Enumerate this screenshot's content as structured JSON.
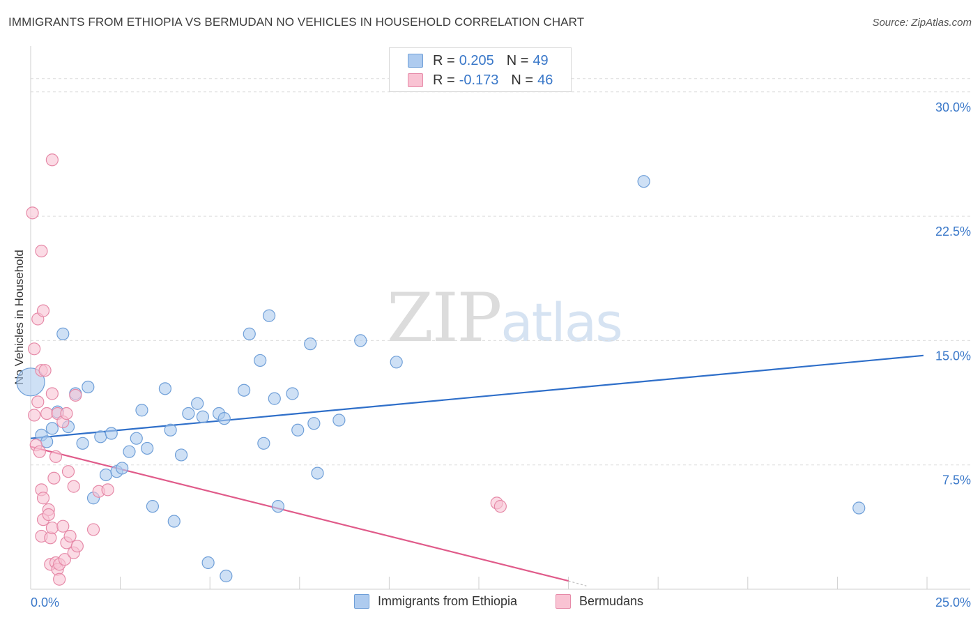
{
  "title": "IMMIGRANTS FROM ETHIOPIA VS BERMUDAN NO VEHICLES IN HOUSEHOLD CORRELATION CHART",
  "source": "Source: ZipAtlas.com",
  "watermark": {
    "zip": "ZIP",
    "atlas": "atlas"
  },
  "legend": {
    "r_label": "R =",
    "n_label": "N =",
    "rows": [
      {
        "r": "0.205",
        "n": "49",
        "color": "#aecbef",
        "border": "#6f9fd8"
      },
      {
        "r": "-0.173",
        "n": "46",
        "color": "#f9c3d3",
        "border": "#e68aa8"
      }
    ]
  },
  "bottom_legend": {
    "ethiopia": "Immigrants from Ethiopia",
    "bermudans": "Bermudans"
  },
  "chart_data": {
    "type": "scatter",
    "title": "IMMIGRANTS FROM ETHIOPIA VS BERMUDAN NO VEHICLES IN HOUSEHOLD CORRELATION CHART",
    "xlabel": "",
    "ylabel": "No Vehicles in Household",
    "xlim": [
      0,
      25
    ],
    "ylim": [
      0,
      30
    ],
    "x_tick_labels": [
      "0.0%",
      "25.0%"
    ],
    "y_tick_labels": [
      "7.5%",
      "15.0%",
      "22.5%",
      "30.0%"
    ],
    "y_ticks": [
      7.5,
      15.0,
      22.5,
      30.0
    ],
    "grid": true,
    "legend_position": "top-center",
    "series": [
      {
        "name": "Immigrants from Ethiopia",
        "color": "#aecbef",
        "stroke": "#6f9fd8",
        "trend_color": "#2f6fc9",
        "trend": {
          "x": [
            0,
            24.9
          ],
          "y": [
            9.1,
            14.1
          ]
        },
        "points": [
          [
            0.0,
            12.5
          ],
          [
            0.3,
            9.3
          ],
          [
            0.45,
            8.9
          ],
          [
            0.6,
            9.7
          ],
          [
            0.75,
            10.7
          ],
          [
            0.9,
            15.4
          ],
          [
            1.05,
            9.8
          ],
          [
            1.25,
            11.8
          ],
          [
            1.45,
            8.8
          ],
          [
            1.6,
            12.2
          ],
          [
            1.75,
            5.5
          ],
          [
            1.95,
            9.2
          ],
          [
            2.1,
            6.9
          ],
          [
            2.25,
            9.4
          ],
          [
            2.4,
            7.1
          ],
          [
            2.55,
            7.3
          ],
          [
            2.75,
            8.3
          ],
          [
            2.95,
            9.1
          ],
          [
            3.1,
            10.8
          ],
          [
            3.25,
            8.5
          ],
          [
            3.4,
            5.0
          ],
          [
            3.75,
            12.1
          ],
          [
            3.9,
            9.6
          ],
          [
            4.0,
            4.1
          ],
          [
            4.2,
            8.1
          ],
          [
            4.4,
            10.6
          ],
          [
            4.65,
            11.2
          ],
          [
            4.8,
            10.4
          ],
          [
            4.95,
            1.6
          ],
          [
            5.25,
            10.6
          ],
          [
            5.4,
            10.3
          ],
          [
            5.45,
            0.8
          ],
          [
            5.95,
            12.0
          ],
          [
            6.1,
            15.4
          ],
          [
            6.4,
            13.8
          ],
          [
            6.5,
            8.8
          ],
          [
            6.65,
            16.5
          ],
          [
            6.8,
            11.5
          ],
          [
            6.9,
            5.0
          ],
          [
            7.3,
            11.8
          ],
          [
            7.45,
            9.6
          ],
          [
            7.8,
            14.8
          ],
          [
            7.9,
            10.0
          ],
          [
            8.0,
            7.0
          ],
          [
            8.6,
            10.2
          ],
          [
            9.2,
            15.0
          ],
          [
            10.2,
            13.7
          ],
          [
            17.1,
            24.6
          ],
          [
            23.1,
            4.9
          ]
        ]
      },
      {
        "name": "Bermudans",
        "color": "#f9c3d3",
        "stroke": "#e68aa8",
        "trend_color": "#e05b8a",
        "trend": {
          "x": [
            0,
            15.0
          ],
          "y": [
            8.6,
            0.5
          ]
        },
        "trend_dashed_ext": {
          "x": [
            15.0,
            15.5
          ],
          "y": [
            0.5,
            0.2
          ]
        },
        "points": [
          [
            0.05,
            22.7
          ],
          [
            0.1,
            14.5
          ],
          [
            0.1,
            10.5
          ],
          [
            0.15,
            8.7
          ],
          [
            0.2,
            16.3
          ],
          [
            0.2,
            11.3
          ],
          [
            0.25,
            8.3
          ],
          [
            0.3,
            20.4
          ],
          [
            0.3,
            13.2
          ],
          [
            0.3,
            6.0
          ],
          [
            0.3,
            3.2
          ],
          [
            0.35,
            16.8
          ],
          [
            0.35,
            5.5
          ],
          [
            0.35,
            4.2
          ],
          [
            0.4,
            13.2
          ],
          [
            0.45,
            10.6
          ],
          [
            0.5,
            4.8
          ],
          [
            0.5,
            4.5
          ],
          [
            0.55,
            3.1
          ],
          [
            0.55,
            1.5
          ],
          [
            0.6,
            25.9
          ],
          [
            0.6,
            11.8
          ],
          [
            0.6,
            3.7
          ],
          [
            0.65,
            6.7
          ],
          [
            0.7,
            8.0
          ],
          [
            0.7,
            1.6
          ],
          [
            0.75,
            10.6
          ],
          [
            0.75,
            1.2
          ],
          [
            0.8,
            1.5
          ],
          [
            0.8,
            0.6
          ],
          [
            0.9,
            10.1
          ],
          [
            0.9,
            3.8
          ],
          [
            0.95,
            1.8
          ],
          [
            1.0,
            10.6
          ],
          [
            1.0,
            2.8
          ],
          [
            1.05,
            7.1
          ],
          [
            1.1,
            3.2
          ],
          [
            1.2,
            6.2
          ],
          [
            1.2,
            2.2
          ],
          [
            1.25,
            11.7
          ],
          [
            1.3,
            2.6
          ],
          [
            1.75,
            3.6
          ],
          [
            1.9,
            5.9
          ],
          [
            2.15,
            6.0
          ],
          [
            13.0,
            5.2
          ],
          [
            13.1,
            5.0
          ]
        ]
      }
    ]
  }
}
